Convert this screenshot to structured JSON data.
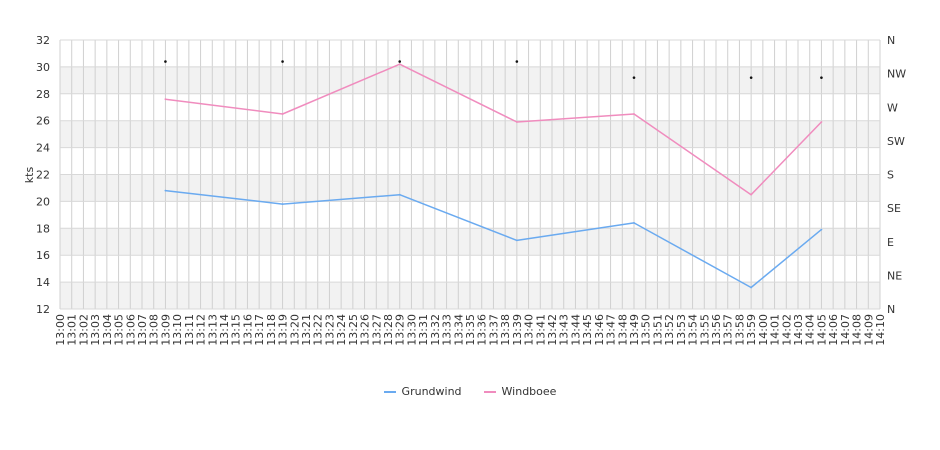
{
  "chart_data": {
    "type": "line",
    "ylabel": "kts",
    "ylim": [
      12,
      32
    ],
    "yticks": [
      "12",
      "14",
      "16",
      "18",
      "20",
      "22",
      "24",
      "26",
      "28",
      "30",
      "32"
    ],
    "y2ticks": [
      "N",
      "NE",
      "E",
      "SE",
      "S",
      "SW",
      "W",
      "NW",
      "N"
    ],
    "x_start": "13:00",
    "x_end": "14:10",
    "xticks": [
      "13:00",
      "13:01",
      "13:02",
      "13:03",
      "13:04",
      "13:05",
      "13:06",
      "13:07",
      "13:08",
      "13:09",
      "13:10",
      "13:11",
      "13:12",
      "13:13",
      "13:14",
      "13:15",
      "13:16",
      "13:17",
      "13:18",
      "13:19",
      "13:20",
      "13:21",
      "13:22",
      "13:23",
      "13:24",
      "13:25",
      "13:26",
      "13:27",
      "13:28",
      "13:29",
      "13:30",
      "13:31",
      "13:32",
      "13:33",
      "13:34",
      "13:35",
      "13:36",
      "13:37",
      "13:38",
      "13:39",
      "13:40",
      "13:41",
      "13:42",
      "13:43",
      "13:44",
      "13:45",
      "13:46",
      "13:47",
      "13:48",
      "13:49",
      "13:50",
      "13:51",
      "13:52",
      "13:53",
      "13:54",
      "13:55",
      "13:56",
      "13:57",
      "13:58",
      "13:59",
      "14:00",
      "14:01",
      "14:02",
      "14:03",
      "14:04",
      "14:05",
      "14:06",
      "14:07",
      "14:08",
      "14:09",
      "14:10"
    ],
    "series": [
      {
        "name": "Grundwind",
        "color": "#6aaaf0",
        "points": [
          [
            "13:09",
            20.8
          ],
          [
            "13:19",
            19.8
          ],
          [
            "13:29",
            20.5
          ],
          [
            "13:39",
            17.1
          ],
          [
            "13:49",
            18.4
          ],
          [
            "13:59",
            13.6
          ],
          [
            "14:05",
            17.9
          ]
        ]
      },
      {
        "name": "Windboee",
        "color": "#f08cbe",
        "points": [
          [
            "13:09",
            27.6
          ],
          [
            "13:19",
            26.5
          ],
          [
            "13:29",
            30.2
          ],
          [
            "13:39",
            25.9
          ],
          [
            "13:49",
            26.5
          ],
          [
            "13:59",
            20.5
          ],
          [
            "14:05",
            25.9
          ]
        ]
      }
    ],
    "direction_markers": [
      [
        "13:09",
        30.4
      ],
      [
        "13:19",
        30.4
      ],
      [
        "13:29",
        30.4
      ],
      [
        "13:39",
        30.4
      ],
      [
        "13:49",
        29.2
      ],
      [
        "13:59",
        29.2
      ],
      [
        "14:05",
        29.2
      ]
    ],
    "grid": true,
    "legend": "bottom-center"
  }
}
